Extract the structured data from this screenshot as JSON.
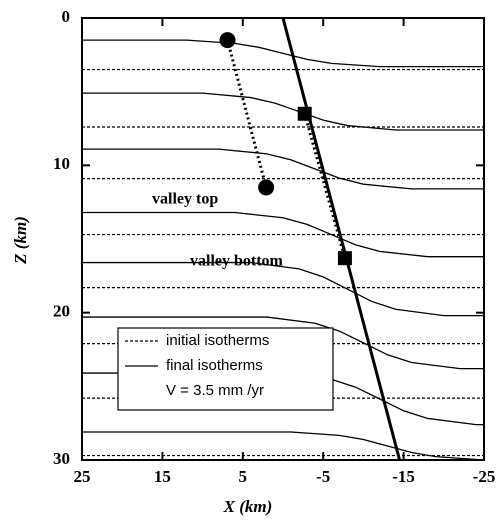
{
  "chart_data": {
    "type": "line",
    "x_label": "X (km)",
    "y_label": "Z (km)",
    "xlim": [
      25,
      -25
    ],
    "ylim": [
      0,
      30
    ],
    "y_inverted": true,
    "xticks": [
      25,
      15,
      5,
      -5,
      -15,
      -25
    ],
    "yticks": [
      0,
      10,
      20,
      30
    ],
    "series": [
      {
        "name": "initial isotherms",
        "style": "dashed",
        "color": "#000000",
        "levels": [
          3.5,
          7.4,
          10.9,
          14.7,
          18.3,
          22.1,
          25.8,
          29.7
        ]
      },
      {
        "name": "final isotherms",
        "style": "solid",
        "color": "#000000",
        "curves": [
          {
            "x": [
              25,
              12,
              6,
              3,
              0,
              -3,
              -6,
              -12,
              -25
            ],
            "z": [
              1.5,
              1.5,
              1.72,
              1.99,
              2.4,
              2.81,
              3.08,
              3.3,
              3.3
            ]
          },
          {
            "x": [
              25,
              10,
              4,
              1,
              -2,
              -5,
              -8,
              -14,
              -25
            ],
            "z": [
              5.1,
              5.1,
              5.4,
              5.78,
              6.35,
              6.93,
              7.3,
              7.6,
              7.6
            ]
          },
          {
            "x": [
              25,
              8,
              2,
              -1,
              -4,
              -7,
              -10,
              -16,
              -25
            ],
            "z": [
              8.9,
              8.9,
              9.22,
              9.63,
              10.25,
              10.87,
              11.28,
              11.6,
              11.6
            ]
          },
          {
            "x": [
              25,
              6,
              0,
              -3,
              -6,
              -9,
              -12,
              -18,
              -25
            ],
            "z": [
              13.2,
              13.2,
              13.56,
              14.01,
              14.7,
              15.39,
              15.84,
              16.2,
              16.2
            ]
          },
          {
            "x": [
              25,
              4,
              -2,
              -5,
              -8,
              -11,
              -14,
              -20,
              -25
            ],
            "z": [
              16.6,
              16.6,
              17.03,
              17.57,
              18.4,
              19.23,
              19.77,
              20.2,
              20.2
            ]
          },
          {
            "x": [
              25,
              2,
              -4,
              -7,
              -10,
              -13,
              -16,
              -22,
              -25
            ],
            "z": [
              20.3,
              20.3,
              20.72,
              21.25,
              22.05,
              22.86,
              23.38,
              23.8,
              23.8
            ]
          },
          {
            "x": [
              25,
              0,
              -6,
              -9,
              -12,
              -15,
              -18,
              -24,
              -25
            ],
            "z": [
              24.1,
              24.1,
              24.52,
              25.05,
              25.85,
              26.66,
              27.18,
              27.6,
              27.6
            ]
          },
          {
            "x": [
              25,
              -1,
              -7,
              -10,
              -13,
              -16,
              -19,
              -25
            ],
            "z": [
              28.1,
              28.1,
              28.33,
              28.61,
              29.05,
              29.49,
              29.77,
              30
            ]
          }
        ]
      }
    ],
    "fault": {
      "x": [
        0,
        -14.5
      ],
      "z": [
        0,
        30
      ]
    },
    "valley_top": {
      "label": "valley top",
      "marker": "circle",
      "x": [
        6.9,
        2.1
      ],
      "z": [
        1.5,
        11.5
      ]
    },
    "valley_bottom": {
      "label": "valley bottom",
      "marker": "square",
      "x": [
        -2.7,
        -7.7
      ],
      "z": [
        6.5,
        16.3
      ]
    },
    "velocity_note": "V = 3.5 mm /yr"
  }
}
